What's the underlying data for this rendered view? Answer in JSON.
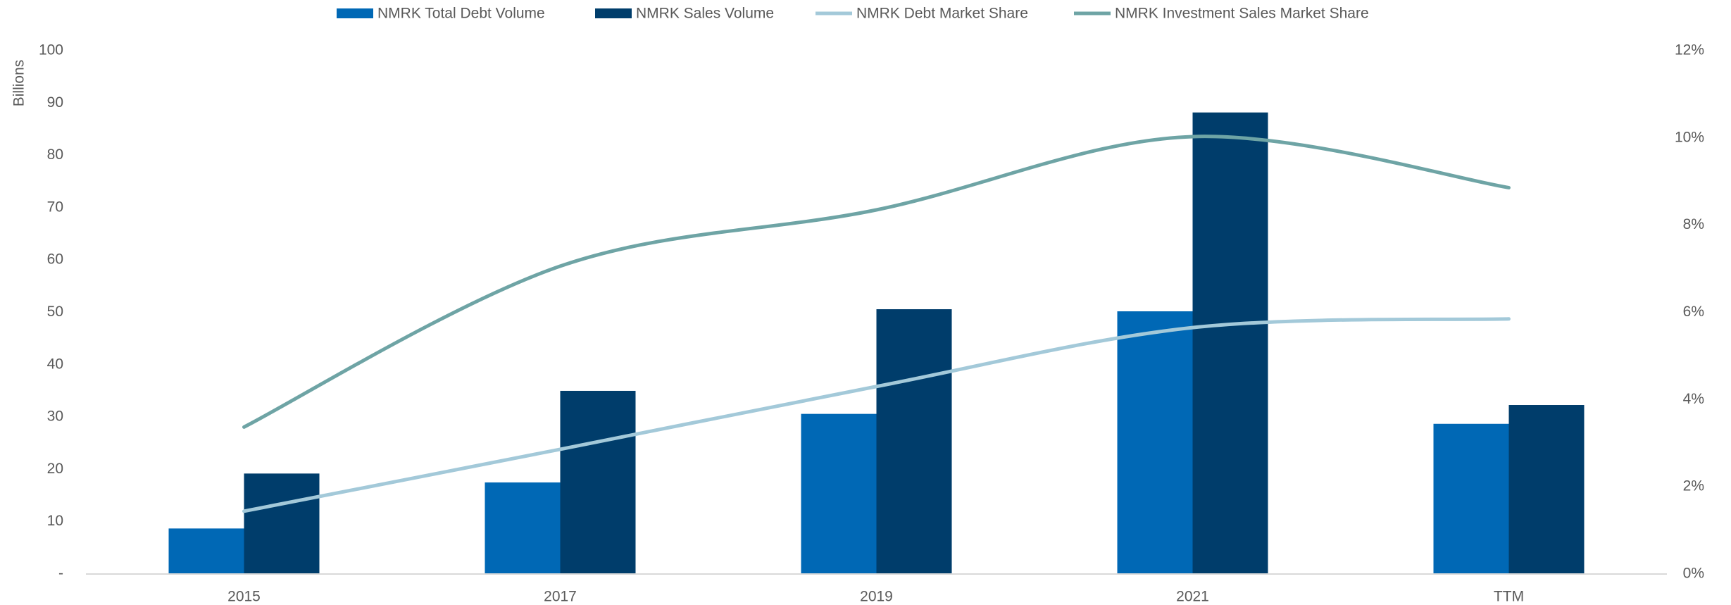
{
  "chart_data": {
    "type": "bar_line",
    "y_label": "Billions",
    "categories": [
      "2015",
      "2017",
      "2019",
      "2021",
      "TTM"
    ],
    "series": [
      {
        "name": "NMRK Total Debt Volume",
        "type": "bar",
        "color": "#0068b5",
        "values": [
          8.7,
          17.5,
          30.6,
          50.2,
          28.7
        ]
      },
      {
        "name": "NMRK Sales Volume",
        "type": "bar",
        "color": "#003d6b",
        "values": [
          19.2,
          35,
          50.6,
          88.2,
          32.3
        ]
      },
      {
        "name": "NMRK Debt Market Share",
        "type": "line",
        "axis": "y2",
        "color": "#a3c9d9",
        "values": [
          1.44,
          2.86,
          4.3,
          5.65,
          5.85
        ]
      },
      {
        "name": "NMRK Investment Sales Market Share",
        "type": "line",
        "axis": "y2",
        "color": "#6ea4a5",
        "values": [
          3.37,
          7.06,
          8.35,
          10.03,
          8.86
        ]
      }
    ],
    "ylim": [
      0,
      100
    ],
    "yticks": [
      {
        "value": 0,
        "label": "-"
      },
      10,
      20,
      30,
      40,
      50,
      60,
      70,
      80,
      90,
      100
    ],
    "y2lim": [
      0,
      12
    ],
    "y2ticks": [
      {
        "value": 0,
        "label": "0%"
      },
      {
        "value": 2,
        "label": "2%"
      },
      {
        "value": 4,
        "label": "4%"
      },
      {
        "value": 6,
        "label": "6%"
      },
      {
        "value": 8,
        "label": "8%"
      },
      {
        "value": 10,
        "label": "10%"
      },
      {
        "value": 12,
        "label": "12%"
      }
    ],
    "grid": false,
    "legend": "top"
  }
}
